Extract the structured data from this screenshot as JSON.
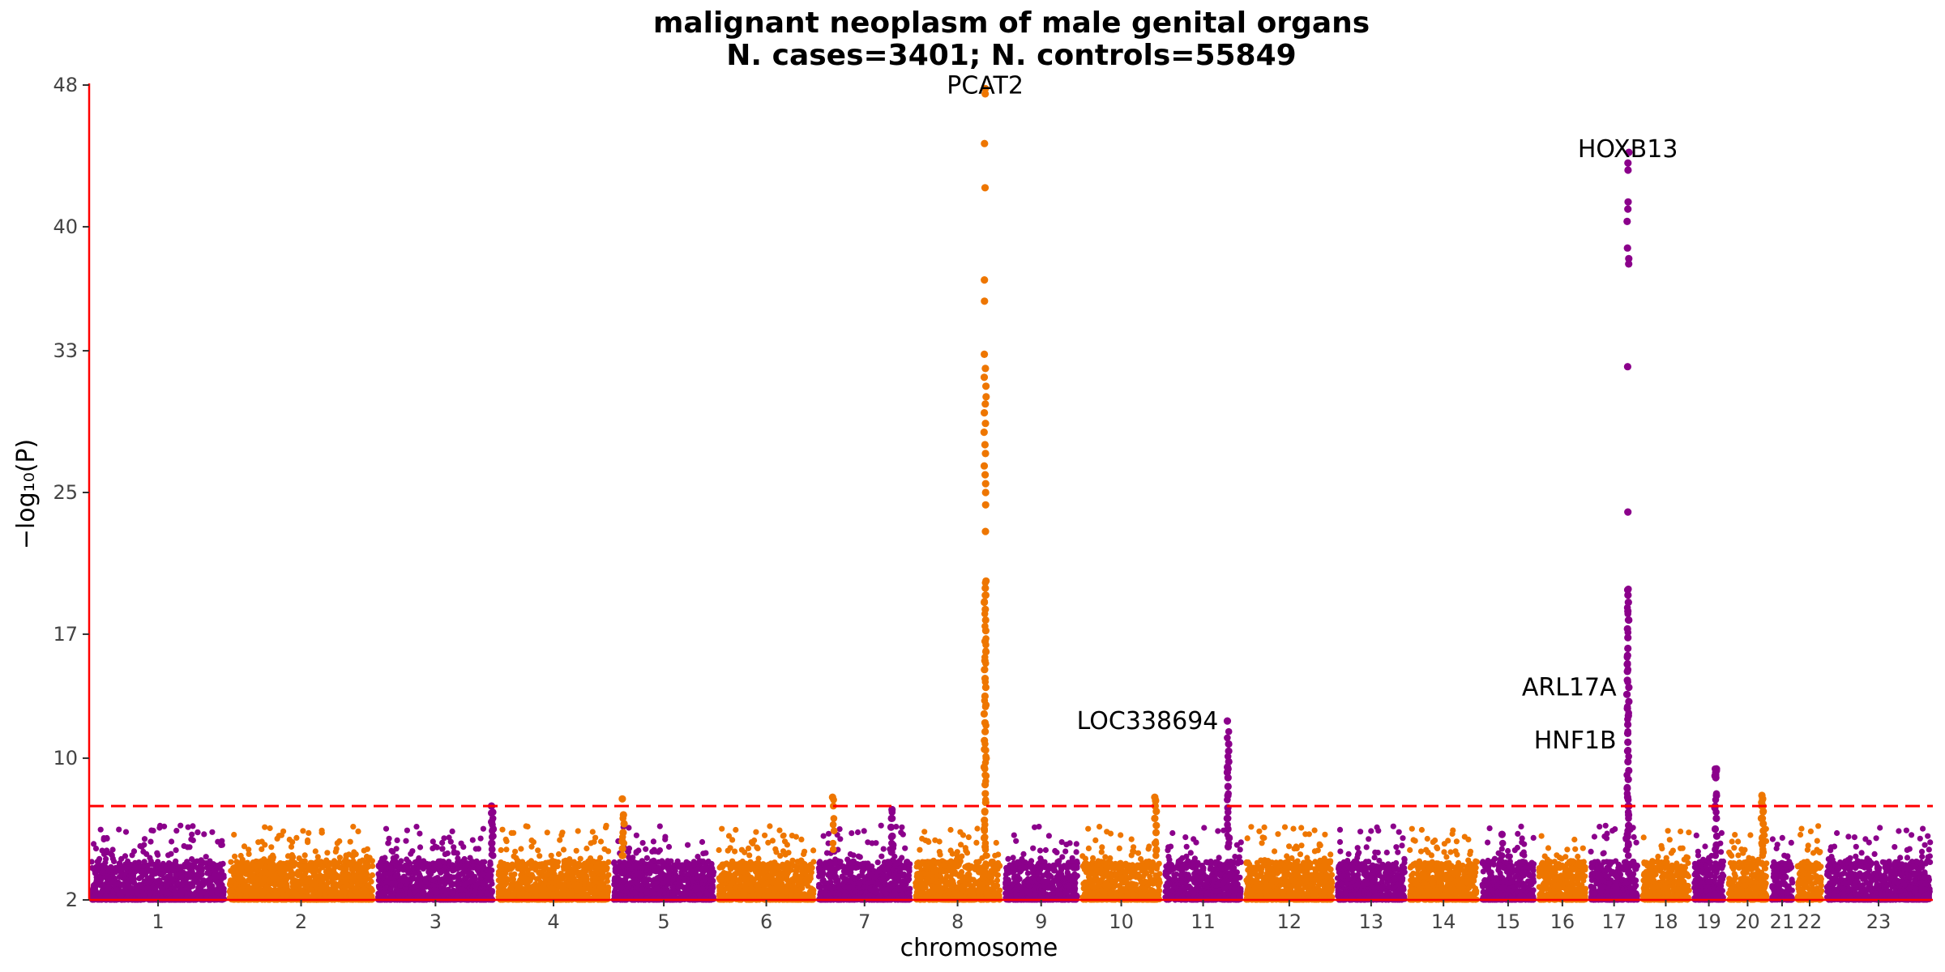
{
  "chart_data": {
    "type": "scatter",
    "subtype": "manhattan",
    "title": "malignant neoplasm of male genital organs",
    "subtitle": "N. cases=3401; N. controls=55849",
    "xlabel": "chromosome",
    "ylabel": "−log₁₀(P)",
    "ylim": [
      2,
      48
    ],
    "yticks": [
      2,
      10,
      17,
      25,
      33,
      40,
      48
    ],
    "threshold": 7.3,
    "colors": {
      "odd": "#8B008B",
      "even": "#EE7600",
      "axis": "#FF0000",
      "threshold": "#FF0000"
    },
    "grid": false,
    "chromosomes": [
      {
        "label": "1",
        "start": 0,
        "end": 8.0
      },
      {
        "label": "2",
        "start": 8.0,
        "end": 16.6
      },
      {
        "label": "3",
        "start": 16.6,
        "end": 23.6
      },
      {
        "label": "4",
        "start": 23.6,
        "end": 30.3
      },
      {
        "label": "5",
        "start": 30.3,
        "end": 36.4
      },
      {
        "label": "6",
        "start": 36.4,
        "end": 42.2
      },
      {
        "label": "7",
        "start": 42.2,
        "end": 47.8
      },
      {
        "label": "8",
        "start": 47.8,
        "end": 53.0
      },
      {
        "label": "9",
        "start": 53.0,
        "end": 57.5
      },
      {
        "label": "10",
        "start": 57.5,
        "end": 62.3
      },
      {
        "label": "11",
        "start": 62.3,
        "end": 67.0
      },
      {
        "label": "12",
        "start": 67.0,
        "end": 72.3
      },
      {
        "label": "13",
        "start": 72.3,
        "end": 76.5
      },
      {
        "label": "14",
        "start": 76.5,
        "end": 80.7
      },
      {
        "label": "15",
        "start": 80.7,
        "end": 84.0
      },
      {
        "label": "16",
        "start": 84.0,
        "end": 87.0
      },
      {
        "label": "17",
        "start": 87.0,
        "end": 90.0
      },
      {
        "label": "18",
        "start": 90.0,
        "end": 93.0
      },
      {
        "label": "19",
        "start": 93.0,
        "end": 95.0
      },
      {
        "label": "20",
        "start": 95.0,
        "end": 97.5
      },
      {
        "label": "21",
        "start": 97.5,
        "end": 99.0
      },
      {
        "label": "22",
        "start": 99.0,
        "end": 100.7
      },
      {
        "label": "23",
        "start": 100.7,
        "end": 107.0
      }
    ],
    "peaks": [
      {
        "chrom": "8",
        "pos": 52.0,
        "max": 47.8,
        "values": [
          47.8,
          47.5,
          44.7,
          42.2,
          37.0,
          35.8,
          32.8,
          32.0,
          31.5,
          31.0,
          30.4,
          30.0,
          29.5,
          28.9,
          28.4,
          27.7,
          27.2,
          26.5,
          26.0,
          25.5,
          25.0,
          24.3,
          22.8,
          20.0,
          19.6,
          19.2,
          18.8,
          18.4,
          17.8,
          17.2,
          16.6,
          16.0,
          15.5,
          15.0,
          14.5,
          14.0,
          13.5,
          13.0,
          12.5,
          12.0,
          11.5,
          11.0,
          10.5,
          10.0,
          9.5,
          9.0,
          8.5,
          8.0,
          7.5,
          7.0,
          6.5,
          6.0,
          5.5,
          5.0
        ]
      },
      {
        "chrom": "17",
        "pos": 89.3,
        "max": 44.2,
        "values": [
          44.2,
          43.6,
          43.2,
          41.4,
          41.0,
          40.3,
          38.8,
          38.2,
          37.9,
          32.1,
          23.9,
          19.5,
          19.2,
          18.8,
          18.3,
          17.8,
          17.3,
          16.8,
          16.2,
          15.8,
          15.3,
          14.9,
          14.4,
          14.0,
          13.6,
          13.2,
          12.8,
          12.4,
          11.9,
          11.4,
          10.9,
          10.4,
          9.8,
          9.3,
          8.8,
          8.3,
          7.8,
          7.3,
          6.8,
          6.2,
          5.7,
          5.1
        ]
      },
      {
        "chrom": "11",
        "pos": 66.1,
        "max": 12.1,
        "values": [
          12.1,
          10.8,
          10.4,
          9.8,
          9.5,
          9.2,
          8.9,
          8.4,
          7.9,
          7.2,
          6.6,
          6.0,
          5.5,
          5.0
        ]
      },
      {
        "chrom": "10",
        "pos": 61.9,
        "max": 7.8,
        "values": [
          7.8,
          7.6,
          7.3,
          7.0,
          6.6,
          6.2,
          5.8,
          5.2,
          4.8
        ]
      },
      {
        "chrom": "19",
        "pos": 94.4,
        "max": 9.4,
        "values": [
          9.4,
          9.3,
          9.2,
          9.0,
          8.9,
          7.9,
          7.2,
          6.6,
          6.0,
          5.6,
          5.1
        ]
      },
      {
        "chrom": "20",
        "pos": 97.1,
        "max": 7.9,
        "values": [
          7.9,
          7.7,
          7.5,
          7.3,
          7.0,
          6.6,
          6.3,
          5.9,
          5.5,
          5.1,
          4.7
        ]
      },
      {
        "chrom": "4",
        "pos": 31.0,
        "max": 7.7,
        "values": [
          7.7,
          6.8,
          6.3,
          5.8,
          5.3,
          4.9,
          4.5
        ]
      },
      {
        "chrom": "6",
        "pos": 43.2,
        "max": 7.8,
        "values": [
          7.8
        ]
      },
      {
        "chrom": "3",
        "pos": 23.4,
        "max": 7.3,
        "values": [
          7.3,
          6.9,
          6.4,
          6.0,
          5.6,
          5.2
        ]
      },
      {
        "chrom": "7",
        "pos": 46.6,
        "max": 7.1,
        "values": [
          7.1,
          6.6,
          6.1,
          5.6,
          5.1,
          4.7
        ]
      },
      {
        "chrom": "15",
        "pos": 82.0,
        "max": 5.7,
        "values": [
          5.7
        ]
      }
    ],
    "annotations": [
      {
        "label": "PCAT2",
        "chrom": "8",
        "x": 52.0,
        "y": 47.8
      },
      {
        "label": "HOXB13",
        "chrom": "17",
        "x": 89.3,
        "y": 44.2
      },
      {
        "label": "LOC338694",
        "chrom": "11",
        "x": 66.1,
        "y": 12.1
      },
      {
        "label": "ARL17A",
        "chrom": "17",
        "x": 89.3,
        "y": 14.0
      },
      {
        "label": "HNF1B",
        "chrom": "17",
        "x": 89.3,
        "y": 11.0
      }
    ]
  }
}
